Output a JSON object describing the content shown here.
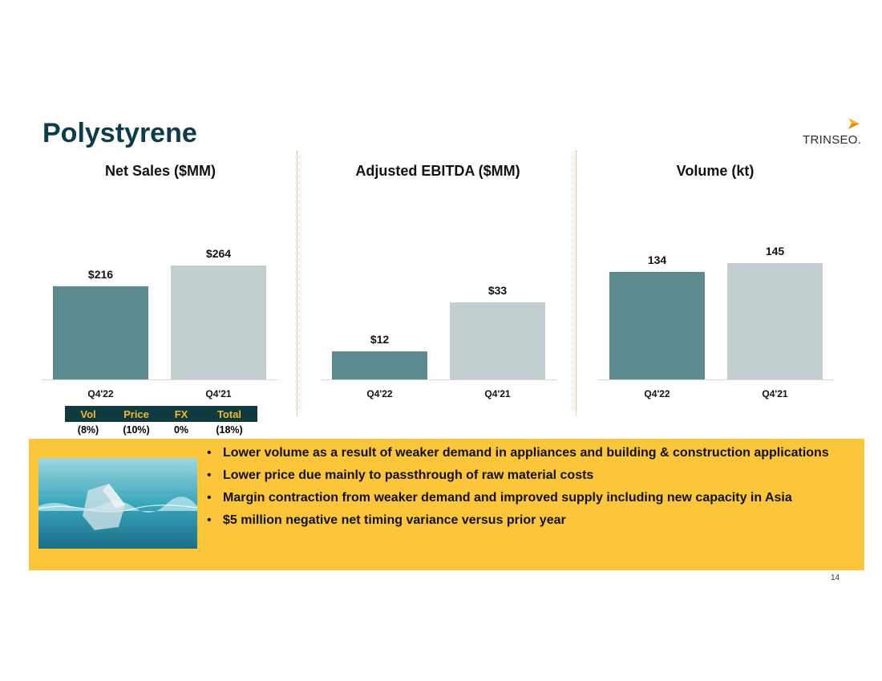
{
  "title": "Polystyrene",
  "logo": {
    "text": "TRINSEO.",
    "colors": {
      "primary": "#f2b825",
      "secondary": "#e08a1e"
    }
  },
  "colors": {
    "current_bar": "#5b8a8f",
    "prior_bar": "#c2ced0",
    "banner": "#fcc63a",
    "table_header": "#0f3b40",
    "table_header_text": "#f2b825",
    "title": "#0c3c47"
  },
  "chart_data": [
    {
      "type": "bar",
      "title": "Net Sales ($MM)",
      "categories": [
        "Q4'22",
        "Q4'21"
      ],
      "values": [
        216,
        264
      ],
      "data_labels": [
        "$216",
        "$264"
      ],
      "xlabel": "",
      "ylabel": ""
    },
    {
      "type": "bar",
      "title": "Adjusted EBITDA ($MM)",
      "categories": [
        "Q4'22",
        "Q4'21"
      ],
      "values": [
        12,
        33
      ],
      "data_labels": [
        "$12",
        "$33"
      ],
      "xlabel": "",
      "ylabel": ""
    },
    {
      "type": "bar",
      "title": "Volume (kt)",
      "categories": [
        "Q4'22",
        "Q4'21"
      ],
      "values": [
        134,
        145
      ],
      "data_labels": [
        "134",
        "145"
      ],
      "xlabel": "",
      "ylabel": ""
    }
  ],
  "price_volume_table": {
    "headers": [
      "Vol",
      "Price",
      "FX",
      "Total"
    ],
    "values": [
      "(8%)",
      "(10%)",
      "0%",
      "(18%)"
    ]
  },
  "highlights": [
    "Lower volume as a result of weaker demand in appliances and building & construction applications",
    "Lower price due mainly to passthrough of raw material costs",
    "Margin contraction from weaker demand and improved supply including new capacity in Asia",
    "$5 million negative net timing variance versus prior year"
  ],
  "page_number": "14"
}
